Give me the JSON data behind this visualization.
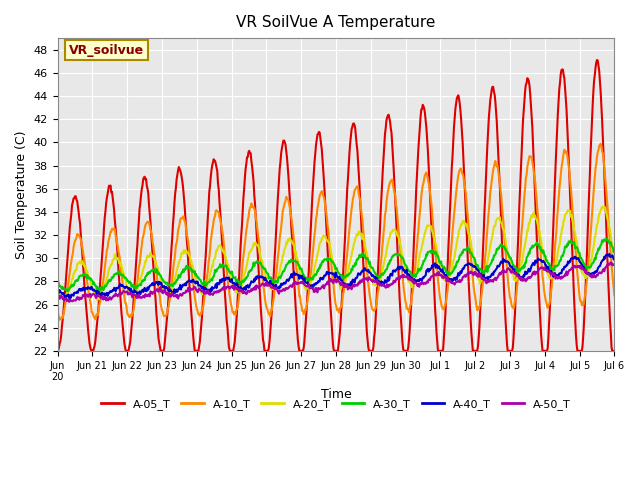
{
  "title": "VR SoilVue A Temperature",
  "xlabel": "Time",
  "ylabel": "Soil Temperature (C)",
  "ylim": [
    22,
    49
  ],
  "yticks": [
    22,
    24,
    26,
    28,
    30,
    32,
    34,
    36,
    38,
    40,
    42,
    44,
    46,
    48
  ],
  "bg_color": "#e8e8e8",
  "plot_bg_color": "#e8e8e8",
  "series_colors": {
    "A-05_T": "#dd0000",
    "A-10_T": "#ff8800",
    "A-20_T": "#dddd00",
    "A-30_T": "#00cc00",
    "A-40_T": "#0000cc",
    "A-50_T": "#aa00aa"
  },
  "legend_label": "VR_soilvue",
  "legend_box_color": "#ffffcc",
  "legend_box_edge": "#aa8800",
  "legend_text_color": "#880000"
}
